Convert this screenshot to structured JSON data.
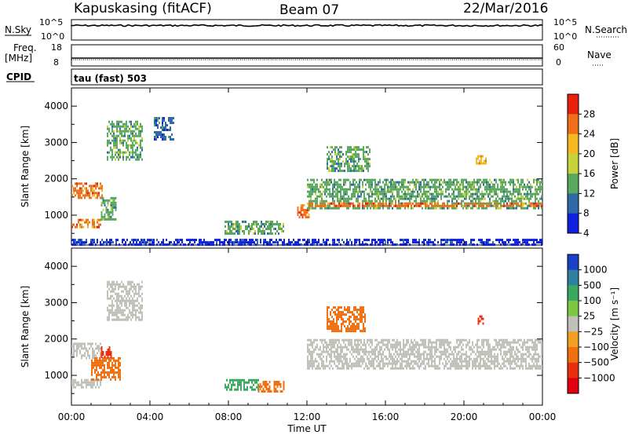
{
  "header": {
    "station": "Kapuskasing (fitACF)",
    "beam": "Beam 07",
    "date": "22/Mar/2016"
  },
  "strip_panels": {
    "nsky_label": "N.Sky",
    "nsky_ticks": [
      "10^5",
      "10^0"
    ],
    "nsearch_label": "N.Search",
    "nsearch_ticks": [
      "10^5",
      "10^0"
    ],
    "freq_label_1": "Freq.",
    "freq_label_2": "[MHz]",
    "freq_ticks": [
      "18",
      "8"
    ],
    "nave_label": "Nave",
    "nave_ticks": [
      "60",
      "0"
    ],
    "cpid_label": "CPID",
    "cpid_text": "tau (fast) 503"
  },
  "chart_data": [
    {
      "type": "heatmap",
      "title": "",
      "xlabel": "Time UT",
      "ylabel": "Slant Range [km]",
      "xlim": [
        0,
        24
      ],
      "ylim": [
        180,
        4500
      ],
      "x_ticks": [
        "00:00",
        "04:00",
        "08:00",
        "12:00",
        "16:00",
        "20:00",
        "00:00"
      ],
      "y_ticks": [
        1000,
        2000,
        3000,
        4000
      ],
      "colorbar": {
        "label": "Power [dB]",
        "ticks": [
          "28",
          "24",
          "20",
          "16",
          "12",
          "8",
          "4"
        ],
        "colors": [
          "#e8200c",
          "#f0701a",
          "#f5b820",
          "#c6d43a",
          "#5aa860",
          "#2f6aa8",
          "#1020e0"
        ]
      },
      "regions": [
        {
          "t0": 0.0,
          "t1": 1.6,
          "r0": 1450,
          "r1": 1900,
          "level": 24
        },
        {
          "t0": 0.0,
          "t1": 1.5,
          "r0": 650,
          "r1": 900,
          "level": 26
        },
        {
          "t0": 1.5,
          "t1": 2.3,
          "r0": 900,
          "r1": 1500,
          "level": 14
        },
        {
          "t0": 1.8,
          "t1": 3.6,
          "r0": 2500,
          "r1": 3600,
          "level": 12
        },
        {
          "t0": 4.2,
          "t1": 5.2,
          "r0": 3100,
          "r1": 3700,
          "level": 8
        },
        {
          "t0": 7.8,
          "t1": 10.8,
          "r0": 500,
          "r1": 850,
          "level": 12
        },
        {
          "t0": 11.5,
          "t1": 12.1,
          "r0": 950,
          "r1": 1300,
          "level": 24
        },
        {
          "t0": 12.0,
          "t1": 24.0,
          "r0": 1200,
          "r1": 2000,
          "level": 14
        },
        {
          "t0": 12.0,
          "t1": 24.0,
          "r0": 1230,
          "r1": 1350,
          "level": 26
        },
        {
          "t0": 13.0,
          "t1": 15.2,
          "r0": 2250,
          "r1": 2900,
          "level": 14
        },
        {
          "t0": 20.6,
          "t1": 21.1,
          "r0": 2450,
          "r1": 2650,
          "level": 20
        },
        {
          "t0": 0.0,
          "t1": 24.0,
          "r0": 200,
          "r1": 350,
          "level": 6
        }
      ]
    },
    {
      "type": "heatmap",
      "title": "",
      "xlabel": "Time UT",
      "ylabel": "Slant Range [km]",
      "xlim": [
        0,
        24
      ],
      "ylim": [
        180,
        4500
      ],
      "x_ticks": [
        "00:00",
        "04:00",
        "08:00",
        "12:00",
        "16:00",
        "20:00",
        "00:00"
      ],
      "y_ticks": [
        1000,
        2000,
        3000,
        4000
      ],
      "colorbar": {
        "label": "Velocity [m s⁻¹]",
        "ticks": [
          "1000",
          "500",
          "100",
          "25",
          "−25",
          "−100",
          "−500",
          "−1000"
        ],
        "colors": [
          "#1a40c8",
          "#2f80a0",
          "#3aa860",
          "#7cc840",
          "#c0c0b8",
          "#f2a020",
          "#f07010",
          "#e83010",
          "#e00010"
        ]
      },
      "regions": [
        {
          "t0": 0.0,
          "t1": 1.5,
          "r0": 1450,
          "r1": 1900,
          "level": 0
        },
        {
          "t0": 0.0,
          "t1": 1.5,
          "r0": 650,
          "r1": 900,
          "level": 0
        },
        {
          "t0": 1.0,
          "t1": 2.5,
          "r0": 900,
          "r1": 1500,
          "level": -300
        },
        {
          "t0": 1.5,
          "t1": 2.0,
          "r0": 1500,
          "r1": 1800,
          "level": -800
        },
        {
          "t0": 1.8,
          "t1": 3.6,
          "r0": 2500,
          "r1": 3600,
          "level": 0
        },
        {
          "t0": 7.8,
          "t1": 9.5,
          "r0": 600,
          "r1": 900,
          "level": 150
        },
        {
          "t0": 9.5,
          "t1": 10.8,
          "r0": 550,
          "r1": 850,
          "level": -150
        },
        {
          "t0": 12.0,
          "t1": 24.0,
          "r0": 1200,
          "r1": 2000,
          "level": 0
        },
        {
          "t0": 13.0,
          "t1": 15.0,
          "r0": 2250,
          "r1": 2900,
          "level": -300
        },
        {
          "t0": 20.7,
          "t1": 21.0,
          "r0": 2450,
          "r1": 2650,
          "level": -800
        }
      ]
    }
  ]
}
